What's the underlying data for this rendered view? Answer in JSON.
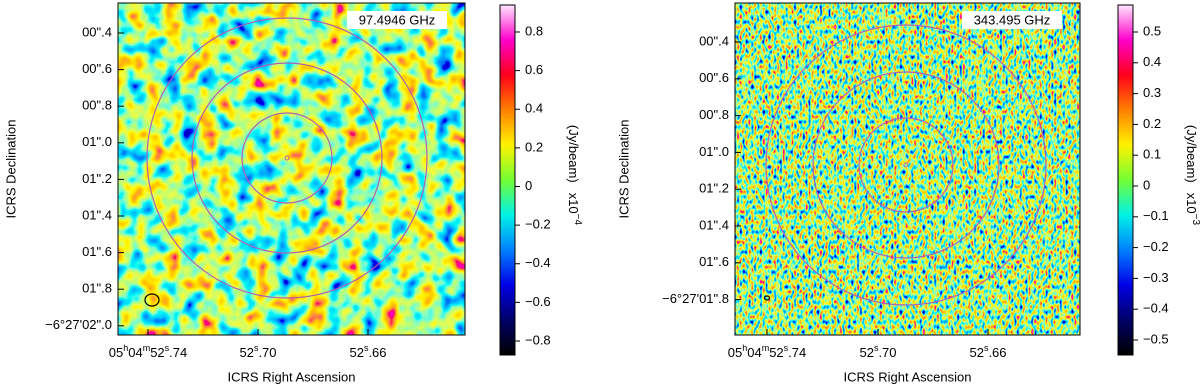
{
  "panels": [
    {
      "frequency": "97.4946 GHz",
      "y_label": "ICRS Declination",
      "x_label": "ICRS Right Ascension",
      "y_ticks": [
        "00\".4",
        "00\".6",
        "00\".8",
        "01\".0",
        "01\".2",
        "01\".4",
        "01\".6",
        "01\".8",
        "−6°27'02\".0"
      ],
      "x_ticks": [
        "05h04m52s.74",
        "52s.70",
        "52s.66"
      ],
      "colorbar_ticks": [
        "0.8",
        "0.6",
        "0.4",
        "0.2",
        "0",
        "−0.2",
        "−0.4",
        "−0.6",
        "−0.8"
      ],
      "colorbar_unit": "(Jy/beam)",
      "colorbar_scale": "x10",
      "colorbar_exponent": "−4"
    },
    {
      "frequency": "343.495 GHz",
      "y_label": "ICRS Declination",
      "x_label": "ICRS Right Ascension",
      "y_ticks": [
        "00\".4",
        "00\".6",
        "00\".8",
        "01\".0",
        "01\".2",
        "01\".4",
        "01\".6",
        "−6°27'01\".8"
      ],
      "x_ticks": [
        "05h04m52s.74",
        "52s.70",
        "52s.66"
      ],
      "colorbar_ticks": [
        "0.5",
        "0.4",
        "0.3",
        "0.2",
        "0.1",
        "0",
        "−0.1",
        "−0.2",
        "−0.3",
        "−0.4",
        "−0.5"
      ],
      "colorbar_unit": "(Jy/beam)",
      "colorbar_scale": "x10",
      "colorbar_exponent": "−3"
    }
  ]
}
